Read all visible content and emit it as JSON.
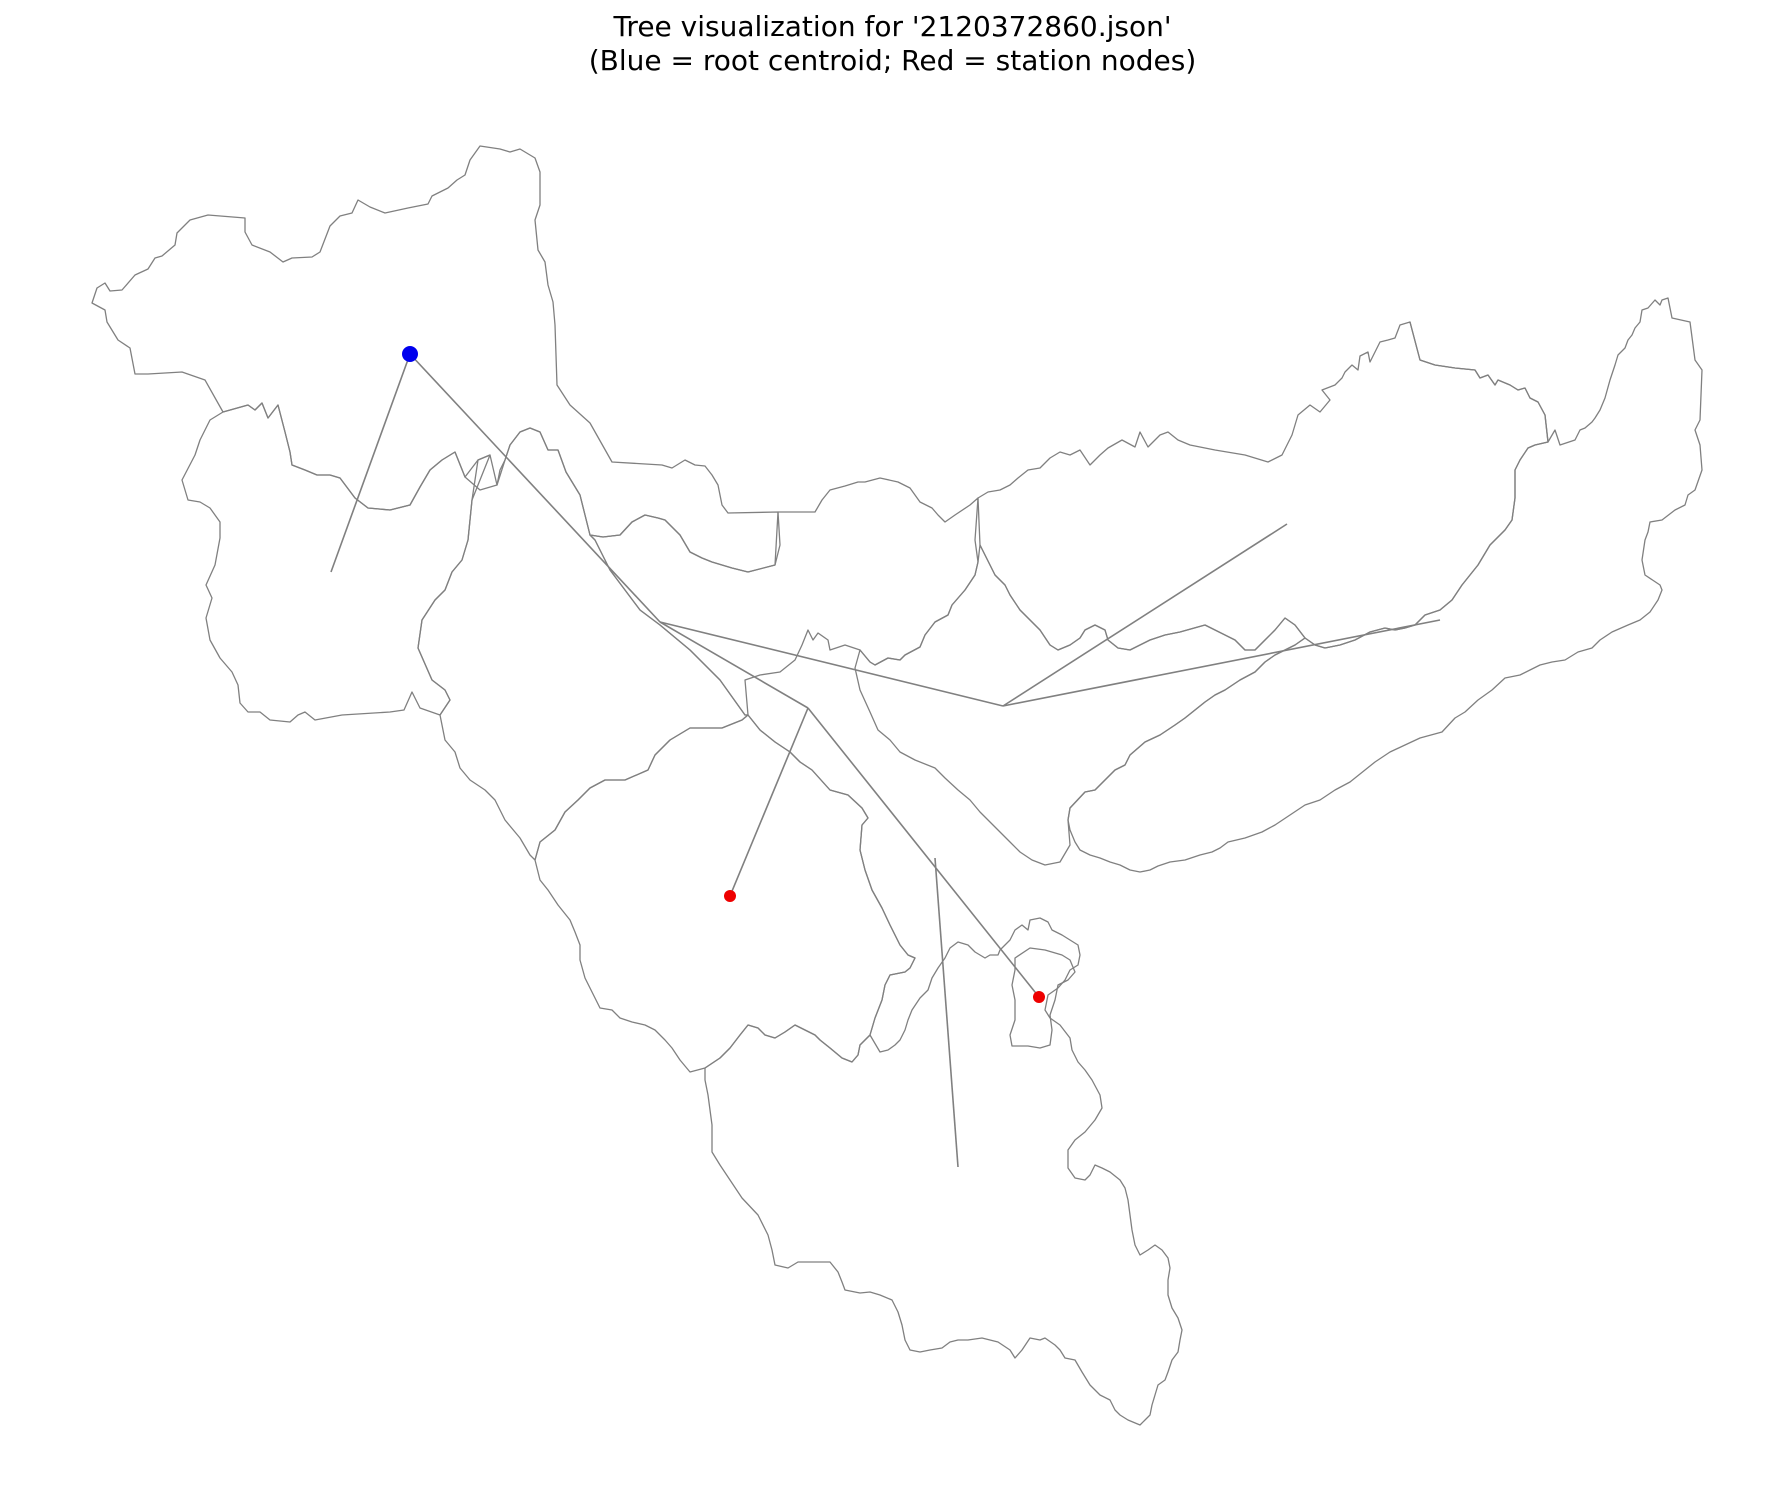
{
  "title": {
    "line1": "Tree visualization for '2120372860.json'",
    "line2": "(Blue = root centroid; Red = station nodes)"
  },
  "colors": {
    "root_node": "#0000ee",
    "station_node": "#ee0000",
    "edges": "#808080",
    "boundaries": "#808080",
    "background": "#ffffff"
  },
  "legend": {
    "root": "root centroid",
    "station": "station nodes"
  }
}
